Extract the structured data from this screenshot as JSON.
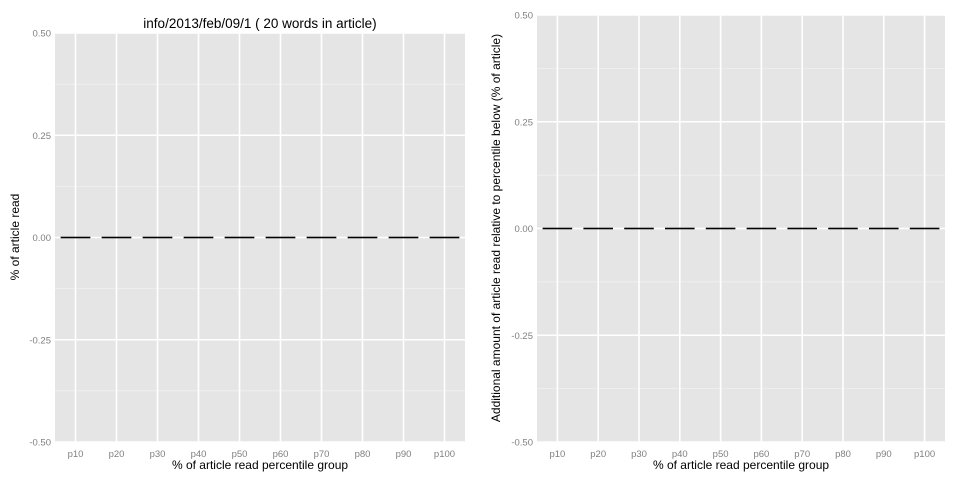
{
  "chart_data": [
    {
      "type": "bar",
      "title": "info/2013/feb/09/1 ( 20 words in article)",
      "xlabel": "% of article read percentile group",
      "ylabel": "% of article read",
      "categories": [
        "p10",
        "p20",
        "p30",
        "p40",
        "p50",
        "p60",
        "p70",
        "p80",
        "p90",
        "p100"
      ],
      "values": [
        0,
        0,
        0,
        0,
        0,
        0,
        0,
        0,
        0,
        0
      ],
      "ylim": [
        -0.5,
        0.5
      ],
      "yticks": [
        -0.5,
        -0.25,
        0,
        0.25,
        0.5
      ],
      "ytick_labels": [
        "-0.50",
        "-0.25",
        "0.00",
        "0.25",
        "0.50"
      ],
      "grid": true,
      "colors": {
        "panel": "#e5e5e5",
        "grid": "#ffffff",
        "bar_outline": "#000000"
      }
    },
    {
      "type": "bar",
      "title": "",
      "xlabel": "% of article read percentile group",
      "ylabel": "Additional amount of article read relative to percentile below (% of article)",
      "categories": [
        "p10",
        "p20",
        "p30",
        "p40",
        "p50",
        "p60",
        "p70",
        "p80",
        "p90",
        "p100"
      ],
      "values": [
        0,
        0,
        0,
        0,
        0,
        0,
        0,
        0,
        0,
        0
      ],
      "ylim": [
        -0.5,
        0.5
      ],
      "yticks": [
        -0.5,
        -0.25,
        0,
        0.25,
        0.5
      ],
      "ytick_labels": [
        "-0.50",
        "-0.25",
        "0.00",
        "0.25",
        "0.50"
      ],
      "grid": true,
      "colors": {
        "panel": "#e5e5e5",
        "grid": "#ffffff",
        "bar_outline": "#000000"
      }
    }
  ]
}
